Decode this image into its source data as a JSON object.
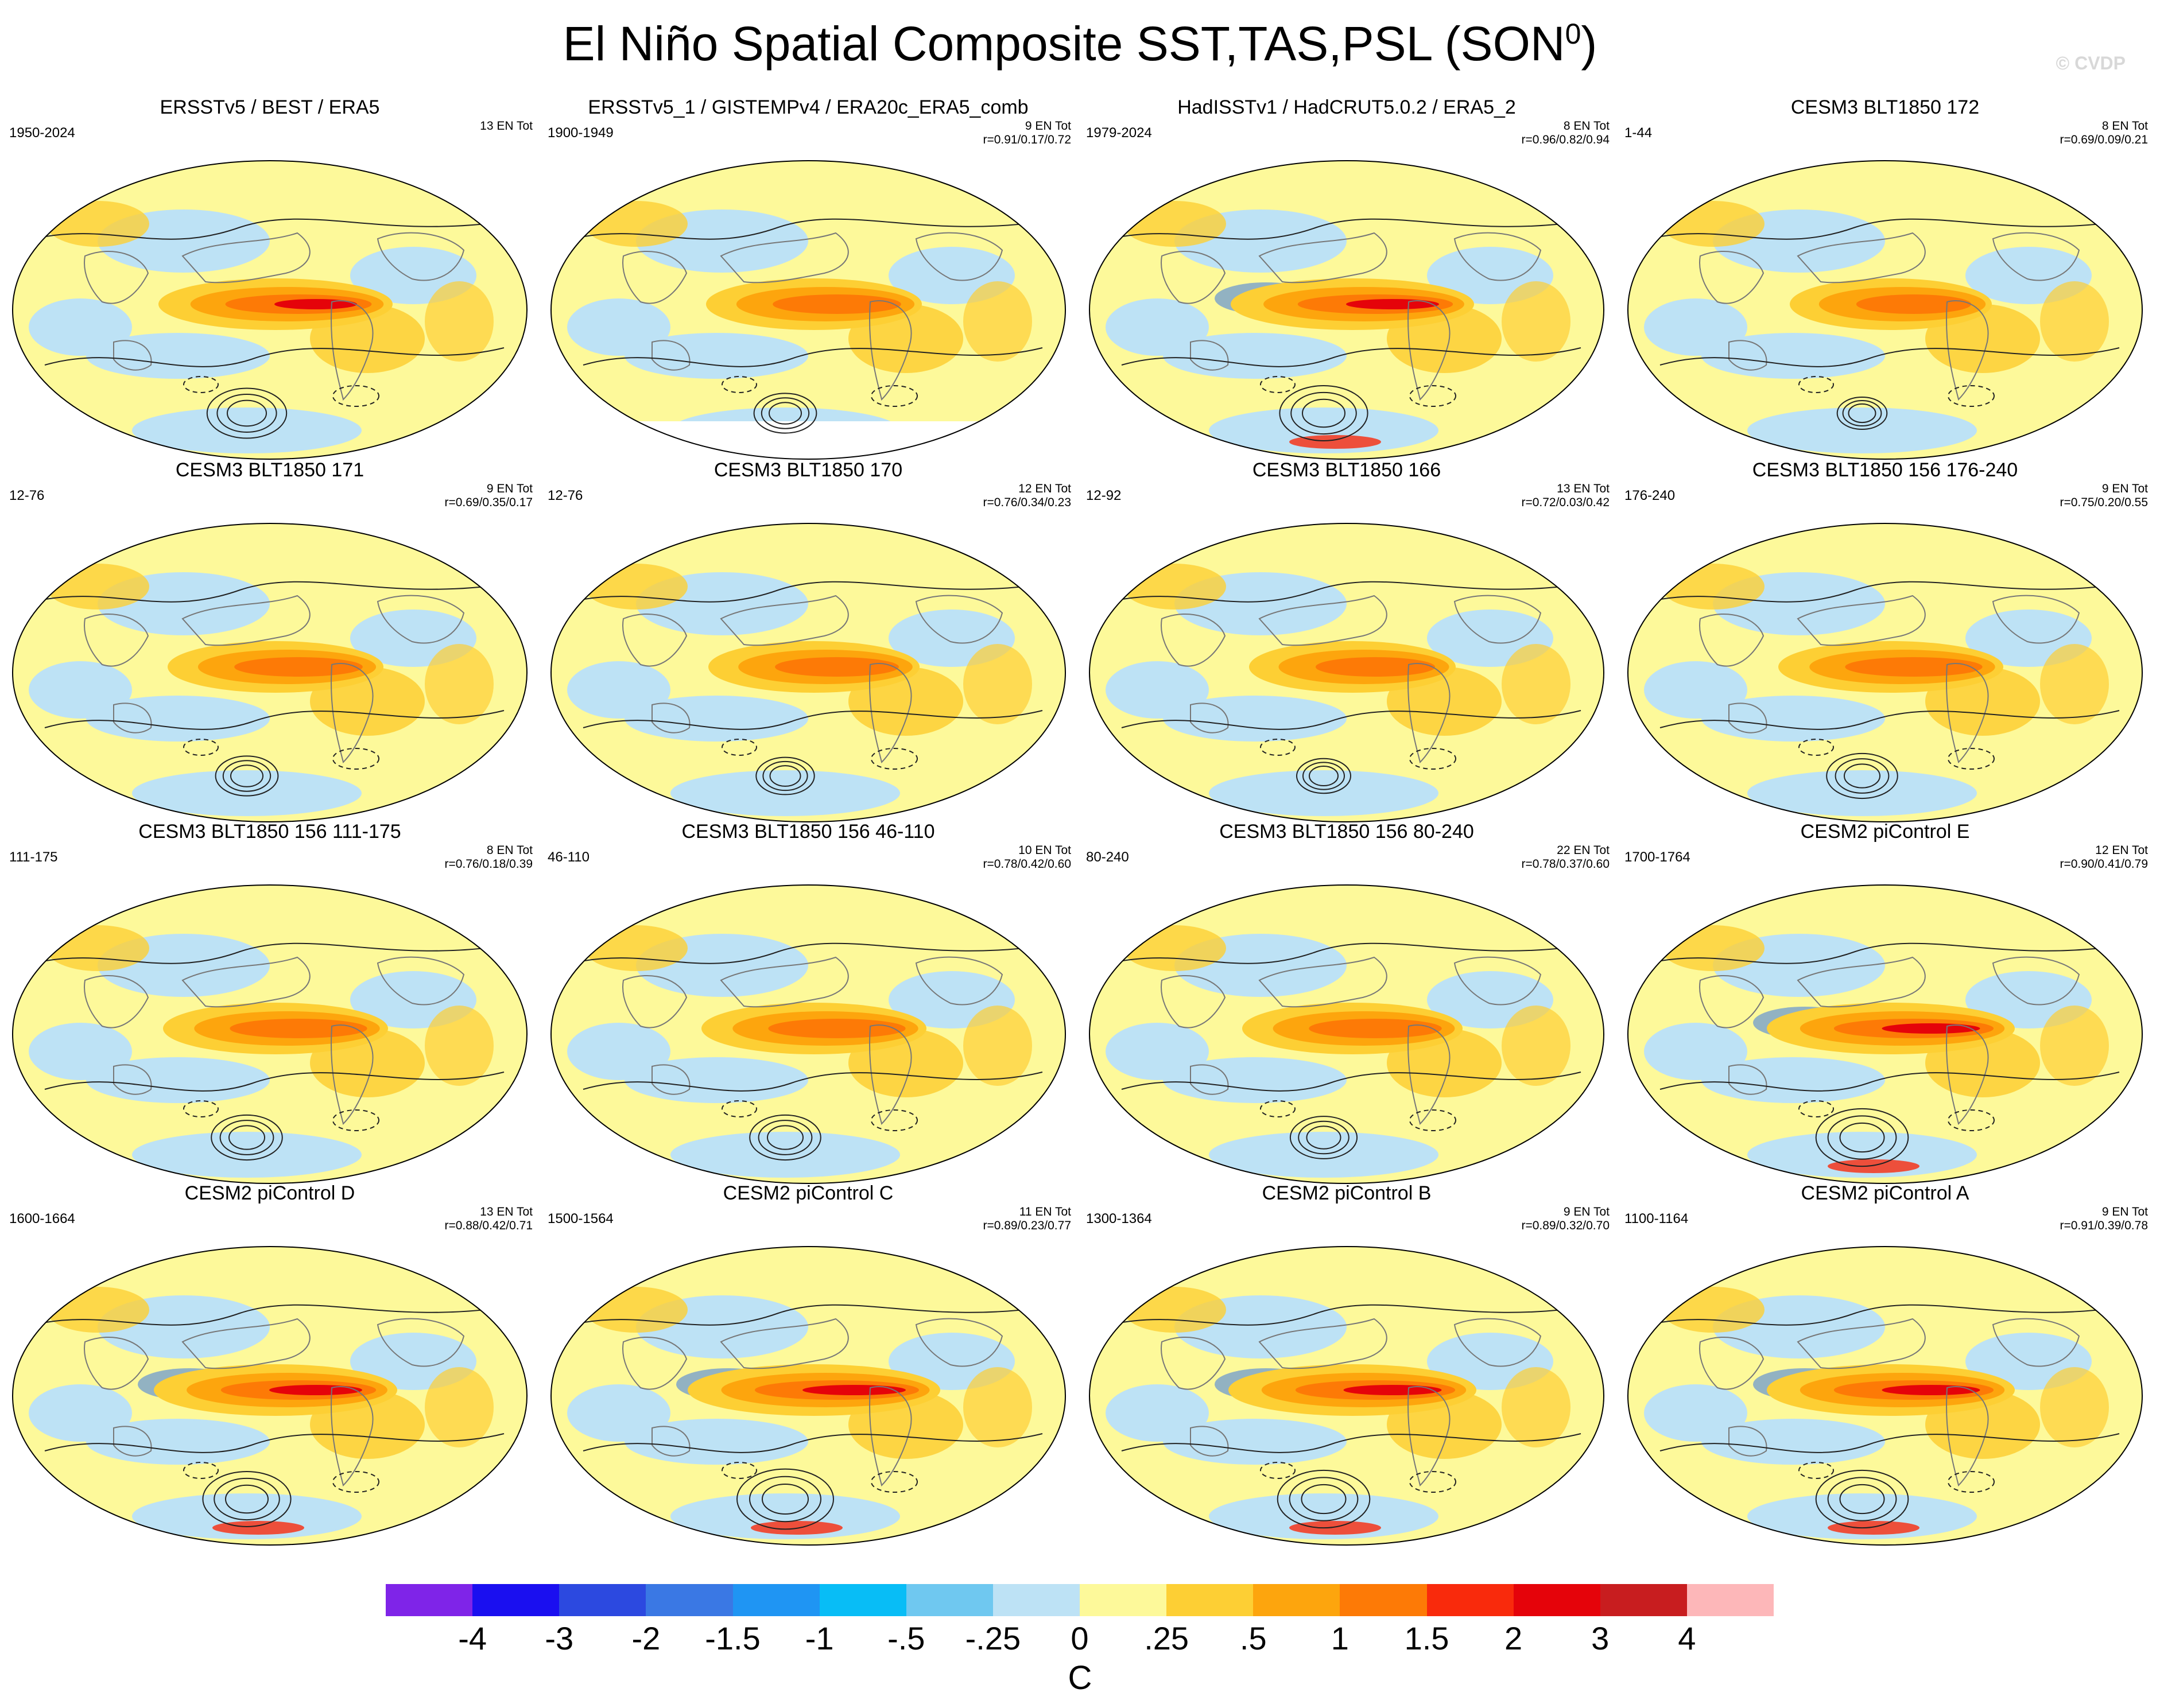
{
  "title": "El Niño Spatial Composite SST,TAS,PSL (SON",
  "title_superscript": "0",
  "title_close": ")",
  "watermark": "© CVDP",
  "panels": [
    {
      "title": "ERSSTv5 / BEST / ERA5",
      "years": "1950-2024",
      "count": "13 EN Tot",
      "stats": "",
      "intensity": 0.8,
      "blank_south": false
    },
    {
      "title": "ERSSTv5_1 / GISTEMPv4 / ERA20c_ERA5_comb",
      "years": "1900-1949",
      "count": "9 EN Tot",
      "stats": "r=0.91/0.17/0.72",
      "intensity": 0.6,
      "blank_south": true
    },
    {
      "title": "HadISSTv1 / HadCRUT5.0.2 / ERA5_2",
      "years": "1979-2024",
      "count": "8 EN Tot",
      "stats": "r=0.96/0.82/0.94",
      "intensity": 0.9,
      "blank_south": false
    },
    {
      "title": "CESM3 BLT1850 172",
      "years": "1-44",
      "count": "8 EN Tot",
      "stats": "r=0.69/0.09/0.21",
      "intensity": 0.45,
      "blank_south": false
    },
    {
      "title": "CESM3 BLT1850 171",
      "years": "12-76",
      "count": "9 EN Tot",
      "stats": "r=0.69/0.35/0.17",
      "intensity": 0.6,
      "blank_south": false
    },
    {
      "title": "CESM3 BLT1850 170",
      "years": "12-76",
      "count": "12 EN Tot",
      "stats": "r=0.76/0.34/0.23",
      "intensity": 0.55,
      "blank_south": false
    },
    {
      "title": "CESM3 BLT1850 166",
      "years": "12-92",
      "count": "13 EN Tot",
      "stats": "r=0.72/0.03/0.42",
      "intensity": 0.5,
      "blank_south": false
    },
    {
      "title": "CESM3 BLT1850 156 176-240",
      "years": "176-240",
      "count": "9 EN Tot",
      "stats": "r=0.75/0.20/0.55",
      "intensity": 0.7,
      "blank_south": false
    },
    {
      "title": "CESM3 BLT1850 156 111-175",
      "years": "111-175",
      "count": "8 EN Tot",
      "stats": "r=0.76/0.18/0.39",
      "intensity": 0.7,
      "blank_south": false
    },
    {
      "title": "CESM3 BLT1850 156 46-110",
      "years": "46-110",
      "count": "10 EN Tot",
      "stats": "r=0.78/0.42/0.60",
      "intensity": 0.7,
      "blank_south": false
    },
    {
      "title": "CESM3 BLT1850 156 80-240",
      "years": "80-240",
      "count": "22 EN Tot",
      "stats": "r=0.78/0.37/0.60",
      "intensity": 0.65,
      "blank_south": false
    },
    {
      "title": "CESM2 piControl E",
      "years": "1700-1764",
      "count": "12 EN Tot",
      "stats": "r=0.90/0.41/0.79",
      "intensity": 0.95,
      "blank_south": false
    },
    {
      "title": "CESM2 piControl D",
      "years": "1600-1664",
      "count": "13 EN Tot",
      "stats": "r=0.88/0.42/0.71",
      "intensity": 0.9,
      "blank_south": false
    },
    {
      "title": "CESM2 piControl C",
      "years": "1500-1564",
      "count": "11 EN Tot",
      "stats": "r=0.89/0.23/0.77",
      "intensity": 1.0,
      "blank_south": false
    },
    {
      "title": "CESM2 piControl B",
      "years": "1300-1364",
      "count": "9 EN Tot",
      "stats": "r=0.89/0.32/0.70",
      "intensity": 0.95,
      "blank_south": false
    },
    {
      "title": "CESM2 piControl A",
      "years": "1100-1164",
      "count": "9 EN Tot",
      "stats": "r=0.91/0.39/0.78",
      "intensity": 0.95,
      "blank_south": false
    }
  ],
  "colorbar": {
    "colors": [
      "#7f24e8",
      "#1a0ff0",
      "#2c49e0",
      "#3a78e4",
      "#1f95f3",
      "#08bdf6",
      "#6fc8f0",
      "#bde2f5",
      "#fdf99a",
      "#fdcf34",
      "#fda50d",
      "#fd7a06",
      "#f92a0c",
      "#e5030a",
      "#c81d1f",
      "#fdb7b9"
    ],
    "labels": [
      "-4",
      "-3",
      "-2",
      "-1.5",
      "-1",
      "-.5",
      "-.25",
      "0",
      ".25",
      ".5",
      "1",
      "1.5",
      "2",
      "3",
      "4"
    ],
    "units": "C"
  }
}
